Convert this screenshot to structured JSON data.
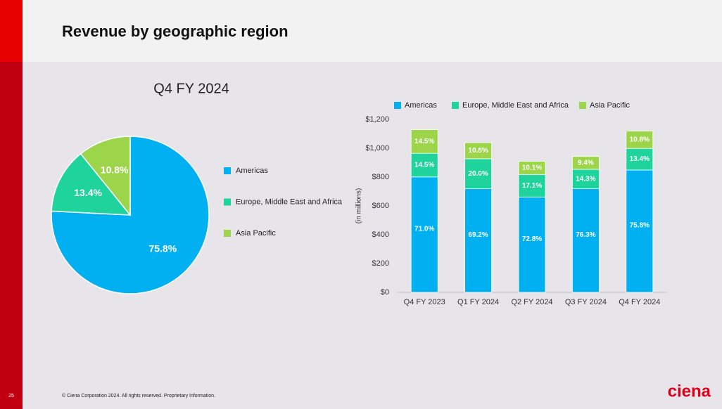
{
  "header": {
    "title": "Revenue by geographic region"
  },
  "chart_data": [
    {
      "type": "pie",
      "title": "Q4 FY 2024",
      "categories": [
        "Americas",
        "Europe, Middle East and Africa",
        "Asia Pacific"
      ],
      "values": [
        75.8,
        13.4,
        10.8
      ],
      "value_labels": [
        "75.8%",
        "13.4%",
        "10.8%"
      ],
      "colors": [
        "#00b0f0",
        "#1fd39c",
        "#9dd54a"
      ]
    },
    {
      "type": "bar",
      "stacked": true,
      "ylabel": "(in millions)",
      "categories": [
        "Q4 FY 2023",
        "Q1 FY 2024",
        "Q2 FY 2024",
        "Q3 FY 2024",
        "Q4 FY 2024"
      ],
      "series": [
        {
          "name": "Americas",
          "color": "#00b0f0",
          "values": [
            801,
            719,
            662,
            719,
            849
          ],
          "segment_labels": [
            "71.0%",
            "69.2%",
            "72.8%",
            "76.3%",
            "75.8%"
          ]
        },
        {
          "name": "Europe, Middle East and Africa",
          "color": "#1fd39c",
          "values": [
            164,
            208,
            156,
            135,
            150
          ],
          "segment_labels": [
            "14.5%",
            "20.0%",
            "17.1%",
            "14.3%",
            "13.4%"
          ]
        },
        {
          "name": "Asia Pacific",
          "color": "#9dd54a",
          "values": [
            164,
            112,
            92,
            89,
            121
          ],
          "segment_labels": [
            "14.5%",
            "10.8%",
            "10.1%",
            "9.4%",
            "10.8%"
          ]
        }
      ],
      "ylim": [
        0,
        1200
      ],
      "yticks": [
        {
          "value": 0,
          "label": "$0"
        },
        {
          "value": 200,
          "label": "$200"
        },
        {
          "value": 400,
          "label": "$400"
        },
        {
          "value": 600,
          "label": "$600"
        },
        {
          "value": 800,
          "label": "$800"
        },
        {
          "value": 1000,
          "label": "$1,000"
        },
        {
          "value": 1200,
          "label": "$1,200"
        }
      ],
      "legend": "top"
    }
  ],
  "footer": {
    "page": "25",
    "copyright": "© Ciena Corporation 2024. All rights reserved. Proprietary Information.",
    "logo": "ciena"
  }
}
